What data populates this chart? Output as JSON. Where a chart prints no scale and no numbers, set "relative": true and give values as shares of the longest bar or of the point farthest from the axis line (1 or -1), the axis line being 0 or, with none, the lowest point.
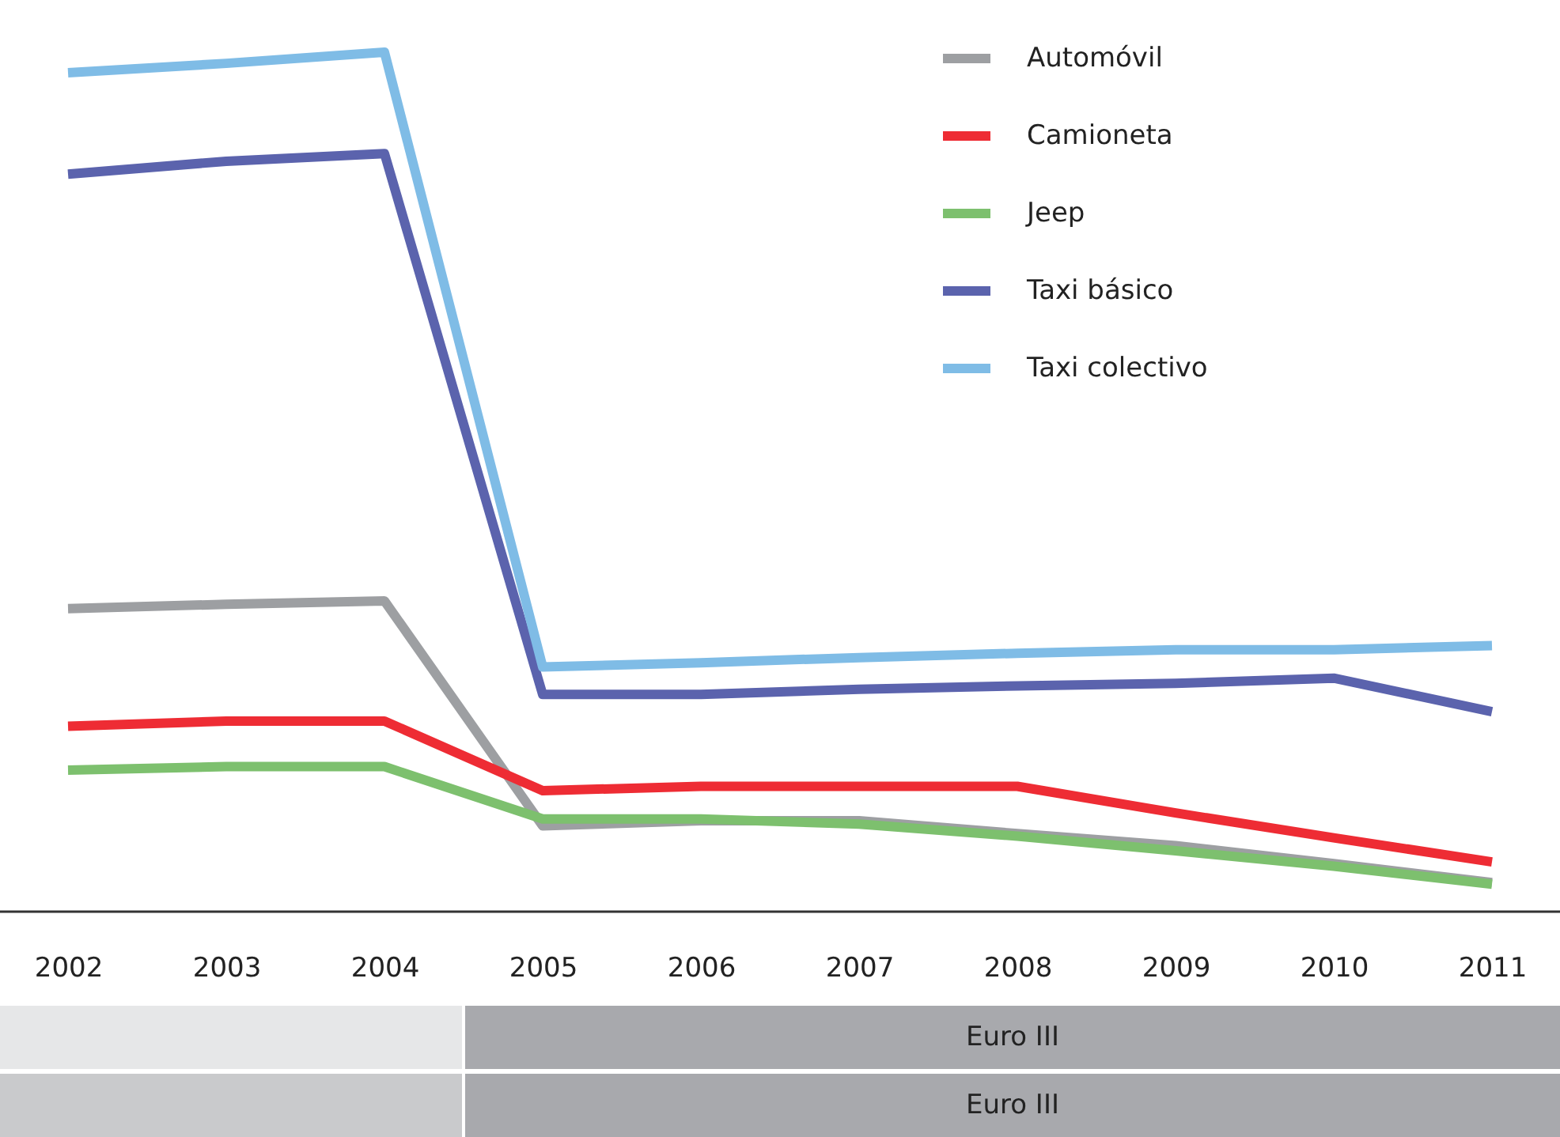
{
  "chart_data": {
    "type": "line",
    "relative": true,
    "categories": [
      "2002",
      "2003",
      "2004",
      "2005",
      "2006",
      "2007",
      "2008",
      "2009",
      "2010",
      "2011"
    ],
    "series": [
      {
        "name": "Automóvil",
        "color": "#9d9fa2",
        "values": [
          0.352,
          0.357,
          0.361,
          0.099,
          0.105,
          0.105,
          0.09,
          0.076,
          0.055,
          0.033
        ]
      },
      {
        "name": "Camioneta",
        "color": "#ee2c34",
        "values": [
          0.215,
          0.221,
          0.221,
          0.14,
          0.145,
          0.145,
          0.145,
          0.114,
          0.085,
          0.057
        ]
      },
      {
        "name": "Jeep",
        "color": "#7dc06e",
        "values": [
          0.164,
          0.168,
          0.168,
          0.107,
          0.107,
          0.101,
          0.087,
          0.07,
          0.052,
          0.031
        ]
      },
      {
        "name": "Taxi básico",
        "color": "#5b63ad",
        "values": [
          0.858,
          0.873,
          0.882,
          0.252,
          0.252,
          0.258,
          0.262,
          0.265,
          0.271,
          0.232
        ]
      },
      {
        "name": "Taxi colectivo",
        "color": "#7fbce6",
        "values": [
          0.976,
          0.987,
          1,
          0.284,
          0.289,
          0.295,
          0.3,
          0.304,
          0.304,
          0.309
        ]
      }
    ],
    "legend": "top right",
    "grid": false,
    "marker": "none",
    "annotations": [
      "Euro III",
      "Euro III"
    ]
  }
}
